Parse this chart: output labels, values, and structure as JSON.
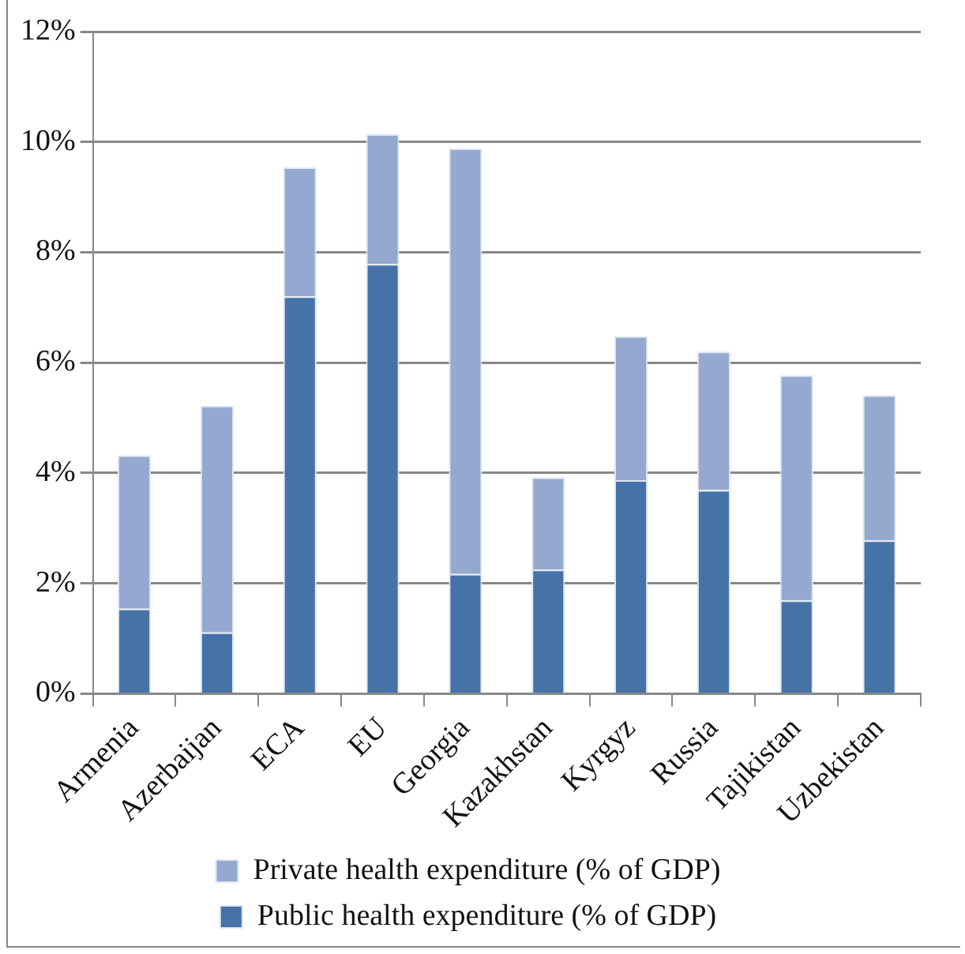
{
  "chart_data": {
    "type": "bar",
    "stacked": true,
    "categories": [
      "Armenia",
      "Azerbaijan",
      "ECA",
      "EU",
      "Georgia",
      "Kazakhstan",
      "Kyrgyz",
      "Russia",
      "Tajikistan",
      "Uzbekistan"
    ],
    "series": [
      {
        "name": "Public health expenditure (% of GDP)",
        "color": "#4573a7",
        "values": [
          1.54,
          1.11,
          7.2,
          7.79,
          2.17,
          2.25,
          3.87,
          3.69,
          1.69,
          2.78
        ]
      },
      {
        "name": "Private health expenditure (% of GDP)",
        "color": "#95a9d0",
        "values": [
          2.78,
          4.11,
          2.34,
          2.35,
          7.71,
          1.67,
          2.61,
          2.51,
          4.08,
          2.63
        ]
      }
    ],
    "ylim": [
      0,
      12
    ],
    "yticks": [
      {
        "value": 0,
        "label": "0%"
      },
      {
        "value": 2,
        "label": "2%"
      },
      {
        "value": 4,
        "label": "4%"
      },
      {
        "value": 6,
        "label": "6%"
      },
      {
        "value": 8,
        "label": "8%"
      },
      {
        "value": 10,
        "label": "10%"
      },
      {
        "value": 12,
        "label": "12%"
      }
    ],
    "grid": "y",
    "legend": "bottom"
  }
}
